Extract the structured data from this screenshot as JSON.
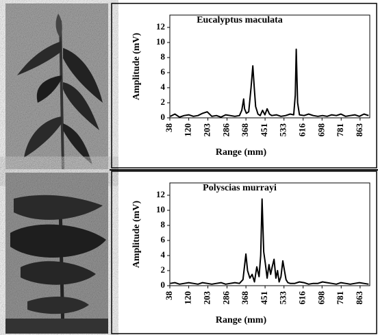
{
  "chart_data": [
    {
      "type": "line",
      "title": "Eucalyptus  maculata",
      "x_label": "Range  (mm)",
      "y_label": "Amplitude (mV)",
      "x": [
        40,
        60,
        80,
        100,
        120,
        140,
        160,
        180,
        200,
        220,
        240,
        260,
        280,
        300,
        320,
        340,
        350,
        358,
        362,
        370,
        380,
        390,
        398,
        404,
        410,
        420,
        430,
        440,
        450,
        460,
        470,
        480,
        500,
        520,
        540,
        560,
        575,
        582,
        586,
        592,
        600,
        620,
        640,
        660,
        680,
        700,
        720,
        740,
        760,
        780,
        800,
        820,
        840,
        860,
        880,
        900
      ],
      "series": [
        {
          "color": "#000000",
          "values": [
            0.2,
            0.5,
            0.1,
            0.3,
            0.4,
            0.2,
            0.3,
            0.6,
            0.8,
            0.2,
            0.3,
            0.1,
            0.4,
            0.3,
            0.2,
            0.3,
            1.0,
            2.5,
            1.2,
            0.6,
            0.8,
            4.0,
            6.9,
            4.0,
            1.5,
            0.5,
            0.3,
            1.0,
            0.4,
            1.2,
            0.5,
            0.3,
            0.4,
            0.2,
            0.3,
            0.5,
            0.4,
            3.0,
            9.1,
            2.0,
            0.4,
            0.3,
            0.5,
            0.3,
            0.2,
            0.3,
            0.2,
            0.4,
            0.3,
            0.5,
            0.2,
            0.3,
            0.4,
            0.2,
            0.5,
            0.3
          ]
        }
      ],
      "xlim": [
        38,
        905
      ],
      "xticks": [
        38,
        120,
        203,
        286,
        368,
        451,
        533,
        616,
        698,
        781,
        863
      ],
      "ylim": [
        0,
        12
      ],
      "yticks": [
        0,
        2,
        4,
        6,
        8,
        10,
        12
      ]
    },
    {
      "type": "line",
      "title": "Polyscias  murrayi",
      "x_label": "Range  (mm)",
      "y_label": "Amplitude (mV)",
      "x": [
        40,
        60,
        80,
        100,
        120,
        140,
        160,
        180,
        200,
        220,
        240,
        260,
        280,
        300,
        320,
        340,
        355,
        368,
        375,
        385,
        395,
        405,
        415,
        425,
        432,
        438,
        445,
        452,
        460,
        468,
        475,
        482,
        490,
        498,
        505,
        512,
        520,
        528,
        535,
        542,
        550,
        560,
        580,
        600,
        620,
        640,
        660,
        680,
        700,
        720,
        740,
        760,
        780,
        800,
        820,
        840,
        860,
        880,
        900
      ],
      "series": [
        {
          "color": "#000000",
          "values": [
            0.3,
            0.4,
            0.2,
            0.3,
            0.4,
            0.3,
            0.2,
            0.4,
            0.3,
            0.2,
            0.3,
            0.4,
            0.2,
            0.3,
            0.4,
            0.3,
            0.8,
            4.2,
            2.0,
            1.0,
            1.5,
            0.5,
            2.5,
            1.2,
            4.0,
            11.5,
            4.5,
            3.0,
            1.0,
            2.8,
            1.5,
            2.5,
            3.5,
            1.0,
            2.0,
            0.5,
            1.2,
            3.3,
            2.0,
            0.8,
            0.4,
            0.3,
            0.3,
            0.5,
            0.4,
            0.2,
            0.3,
            0.3,
            0.5,
            0.4,
            0.3,
            0.2,
            0.4,
            0.3,
            0.2,
            0.3,
            0.4,
            0.3,
            0.2
          ]
        }
      ],
      "xlim": [
        38,
        905
      ],
      "xticks": [
        38,
        120,
        203,
        286,
        368,
        451,
        533,
        616,
        698,
        781,
        863
      ],
      "ylim": [
        0,
        12
      ],
      "yticks": [
        0,
        2,
        4,
        6,
        8,
        10,
        12
      ]
    }
  ]
}
